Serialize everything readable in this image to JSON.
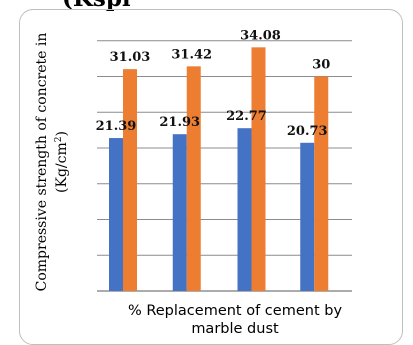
{
  "header_fragment": "(Kspl",
  "chart_data": {
    "type": "bar",
    "title": "",
    "xlabel": "% Replacement of cement by marble dust",
    "xlabel_lines": [
      "% Replacement of cement by",
      "marble dust"
    ],
    "ylabel_lines": [
      "Compressive strength of concrete in",
      "(Kg/cm²)"
    ],
    "categories": [
      "",
      "",
      "",
      ""
    ],
    "series": [
      {
        "color": "#4472c4",
        "values": [
          21.39,
          21.93,
          22.77,
          20.73
        ],
        "labels": [
          "21.39",
          "21.93",
          "22.77",
          "20.73"
        ]
      },
      {
        "color": "#ed7d31",
        "values": [
          31.03,
          31.42,
          34.08,
          30
        ],
        "labels": [
          "31.03",
          "31.42",
          "34.08",
          "30"
        ]
      }
    ],
    "ylim": [
      0,
      36
    ],
    "ytick_step": 5,
    "grid": true,
    "legend": "none"
  }
}
